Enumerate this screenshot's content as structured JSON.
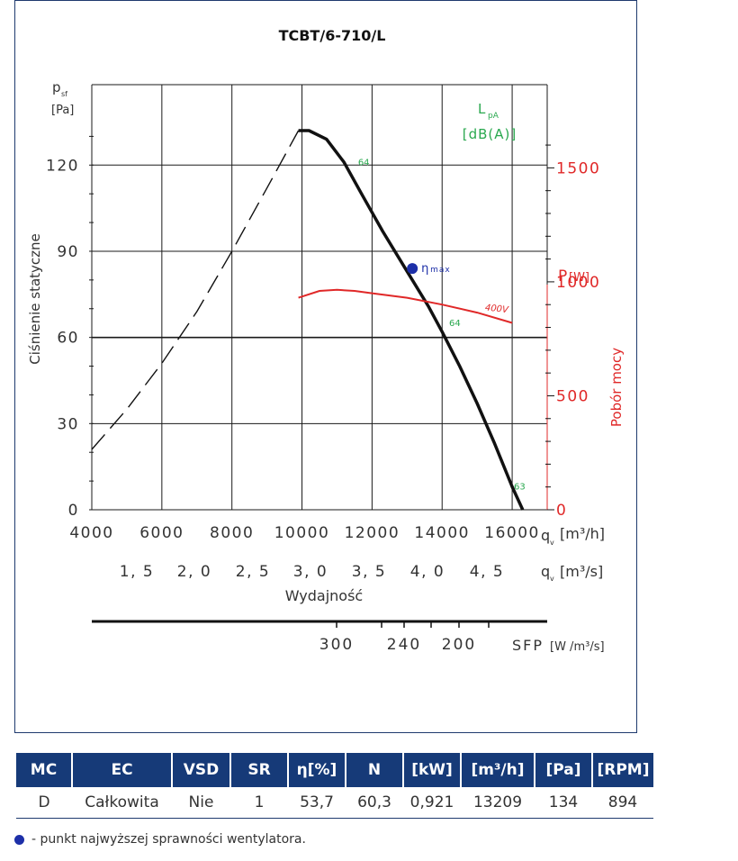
{
  "chart_data": {
    "type": "line",
    "title": "TCBT/6-710/L",
    "ylabel": "Ciśnienie statyczne",
    "y_unit_symbol": "p",
    "y_unit_sub": "sf",
    "y_unit": "[Pa]",
    "y_ticks": [
      0,
      30,
      60,
      90,
      120
    ],
    "ylim": [
      0,
      148
    ],
    "xlabel": "Wydajność",
    "xlim": [
      4000,
      17000
    ],
    "x_ticks_m3h": [
      4000,
      6000,
      8000,
      10000,
      12000,
      14000,
      16000
    ],
    "x_ticks_m3s": [
      "1, 5",
      "2, 0",
      "2, 5",
      "3, 0",
      "3, 5",
      "4, 0",
      "4, 5"
    ],
    "x_unit_m3h": "q",
    "x_unit_m3h_suffix": "[m³/h]",
    "x_unit_m3s": "q",
    "x_unit_m3s_suffix": "[m³/s]",
    "x_unit_sub": "v",
    "y2label": "Pobór mocy",
    "y2_unit": "P",
    "y2_unit_suffix": "[W]",
    "y2_ticks": [
      0,
      500,
      1000,
      1500
    ],
    "y2lim": [
      0,
      1865
    ],
    "lpa_label": "L",
    "lpa_sub": "pA",
    "lpa_unit": "[dB(A)]",
    "sfp_label": "SFP",
    "sfp_unit": "[W /m³/s]",
    "sfp_ticks": [
      "300",
      "240",
      "200"
    ],
    "eta_label": "η",
    "eta_sub": "max",
    "grid": true,
    "series": [
      {
        "name": "",
        "style": "dashed",
        "x": [
          4000,
          5000,
          6000,
          7000,
          8000,
          9000,
          9900
        ],
        "y": [
          21,
          35,
          51,
          69,
          90,
          112,
          132
        ]
      },
      {
        "name": "",
        "style": "solid",
        "x": [
          9900,
          10200,
          10700,
          11200,
          11700,
          12300,
          13000,
          13600,
          14000,
          14500,
          15000,
          15500,
          16000,
          16300
        ],
        "y": [
          132,
          132,
          129,
          121,
          110,
          97,
          83,
          71,
          62,
          50,
          37,
          23,
          8,
          0
        ]
      },
      {
        "name": "400V",
        "axis": "y2",
        "x": [
          9900,
          10500,
          11000,
          11500,
          12000,
          13000,
          14000,
          15000,
          16000
        ],
        "y": [
          930,
          960,
          965,
          960,
          950,
          930,
          900,
          865,
          820
        ]
      }
    ],
    "annotations": [
      {
        "text": "64",
        "x": 11600,
        "y": 120
      },
      {
        "text": "64",
        "x": 14200,
        "y": 64
      },
      {
        "text": "63",
        "x": 16050,
        "y": 7
      }
    ],
    "eta_point": {
      "x": 13150,
      "y": 84
    }
  },
  "table": {
    "headers": [
      "MC",
      "EC",
      "VSD",
      "SR",
      "η[%]",
      "N",
      "[kW]",
      "[m³/h]",
      "[Pa]",
      "[RPM]"
    ],
    "row": [
      "D",
      "Całkowita",
      "Nie",
      "1",
      "53,7",
      "60,3",
      "0,921",
      "13209",
      "134",
      "894"
    ]
  },
  "legend_note": "- punkt najwyższej sprawności wentylatora.",
  "colors": {
    "frame": "#1f3a6e",
    "header_bg": "#163a78",
    "curve": "#111111",
    "power": "#e02828",
    "lpa": "#2aa84f",
    "eta": "#1d2fa8"
  }
}
